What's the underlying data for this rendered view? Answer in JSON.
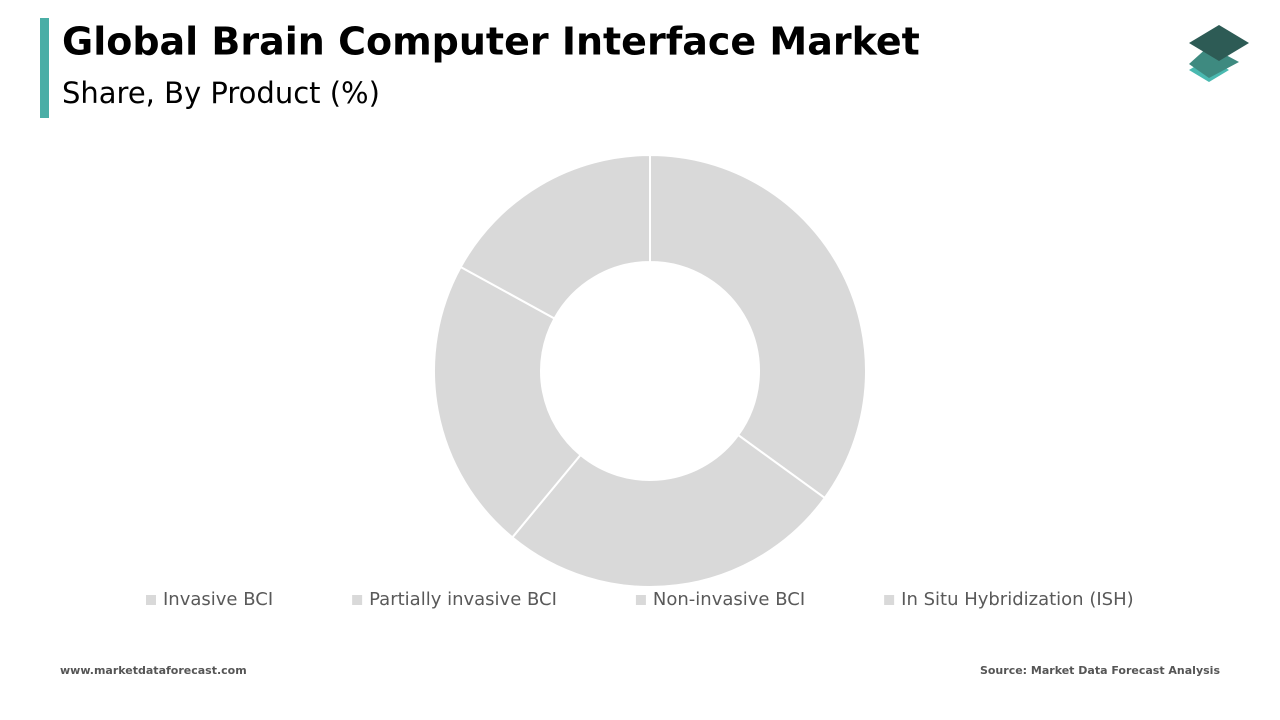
{
  "chart_data": {
    "type": "pie",
    "title": "Global Brain Computer Interface Market",
    "subtitle": "Share, By Product (%)",
    "categories": [
      "Invasive BCI",
      "Partially invasive BCI",
      "Non-invasive BCI",
      "In Situ Hybridization (ISH)"
    ],
    "values": [
      35,
      26,
      22,
      17
    ],
    "colors": [
      "#d9d9d9",
      "#d9d9d9",
      "#d9d9d9",
      "#d9d9d9"
    ],
    "legend": "bottom"
  },
  "footer": {
    "website": "www.marketdataforecast.com",
    "source": "Source: Market Data Forecast Analysis"
  }
}
